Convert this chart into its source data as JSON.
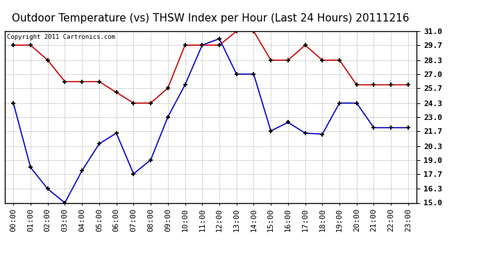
{
  "title": "Outdoor Temperature (vs) THSW Index per Hour (Last 24 Hours) 20111216",
  "copyright": "Copyright 2011 Cartronics.com",
  "x_labels": [
    "00:00",
    "01:00",
    "02:00",
    "03:00",
    "04:00",
    "05:00",
    "06:00",
    "07:00",
    "08:00",
    "09:00",
    "10:00",
    "11:00",
    "12:00",
    "13:00",
    "14:00",
    "15:00",
    "16:00",
    "17:00",
    "18:00",
    "19:00",
    "20:00",
    "21:00",
    "22:00",
    "23:00"
  ],
  "red_data": [
    29.7,
    29.7,
    28.3,
    26.3,
    26.3,
    26.3,
    25.3,
    24.3,
    24.3,
    25.7,
    29.7,
    29.7,
    29.7,
    31.0,
    31.0,
    28.3,
    28.3,
    29.7,
    28.3,
    28.3,
    26.0,
    26.0,
    26.0,
    26.0
  ],
  "blue_data": [
    24.3,
    18.3,
    16.3,
    15.0,
    18.0,
    20.5,
    21.5,
    17.7,
    19.0,
    23.0,
    26.0,
    29.7,
    30.3,
    27.0,
    27.0,
    21.7,
    22.5,
    21.5,
    21.4,
    24.3,
    24.3,
    22.0,
    22.0,
    22.0
  ],
  "ylim": [
    15.0,
    31.0
  ],
  "yticks": [
    15.0,
    16.3,
    17.7,
    19.0,
    20.3,
    21.7,
    23.0,
    24.3,
    25.7,
    27.0,
    28.3,
    29.7,
    31.0
  ],
  "red_color": "#cc0000",
  "blue_color": "#0000cc",
  "background_color": "#ffffff",
  "plot_bg_color": "#ffffff",
  "grid_color": "#aaaaaa",
  "title_fontsize": 11,
  "copyright_fontsize": 6.5,
  "tick_fontsize": 8,
  "marker_color": "#000000"
}
